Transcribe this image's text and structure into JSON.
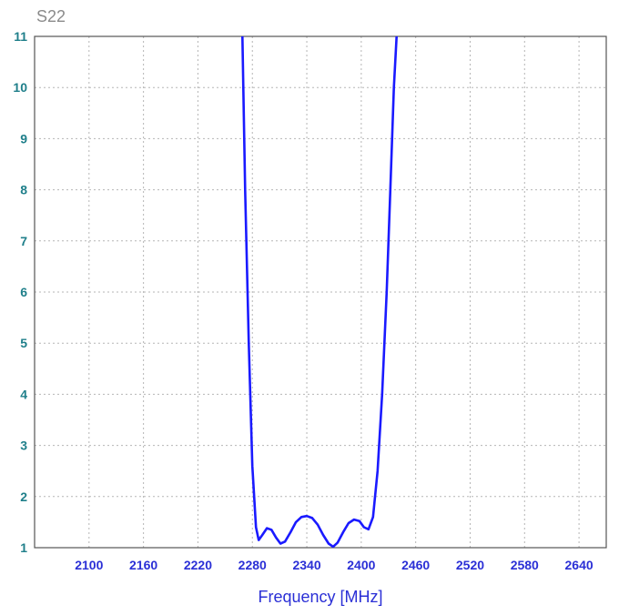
{
  "chart_data": {
    "type": "line",
    "title": "S22",
    "xlabel": "Frequency [MHz]",
    "ylabel": "",
    "xlim": [
      2040,
      2670
    ],
    "ylim": [
      1,
      11
    ],
    "x_ticks": [
      2100,
      2160,
      2220,
      2280,
      2340,
      2400,
      2460,
      2520,
      2580,
      2640
    ],
    "y_ticks": [
      1,
      2,
      3,
      4,
      5,
      6,
      7,
      8,
      9,
      10,
      11
    ],
    "grid": true,
    "colors": {
      "series": "#1a1aff",
      "ytick": "#1f7f8a",
      "xtick": "#2a2fd6",
      "title": "#8a8a8a"
    },
    "series": [
      {
        "name": "",
        "x": [
          2269,
          2272,
          2276,
          2280,
          2284,
          2287,
          2291,
          2296,
          2301,
          2306,
          2311,
          2316,
          2322,
          2328,
          2334,
          2340,
          2346,
          2352,
          2358,
          2364,
          2369,
          2374,
          2380,
          2386,
          2392,
          2398,
          2403,
          2408,
          2413,
          2418,
          2423,
          2428,
          2432,
          2436,
          2439
        ],
        "y": [
          11.0,
          8.0,
          5.0,
          2.6,
          1.4,
          1.15,
          1.25,
          1.38,
          1.35,
          1.2,
          1.08,
          1.12,
          1.3,
          1.5,
          1.6,
          1.62,
          1.58,
          1.45,
          1.25,
          1.08,
          1.02,
          1.1,
          1.3,
          1.48,
          1.55,
          1.52,
          1.4,
          1.36,
          1.6,
          2.5,
          4.0,
          6.0,
          8.0,
          10.0,
          11.0
        ]
      }
    ]
  }
}
